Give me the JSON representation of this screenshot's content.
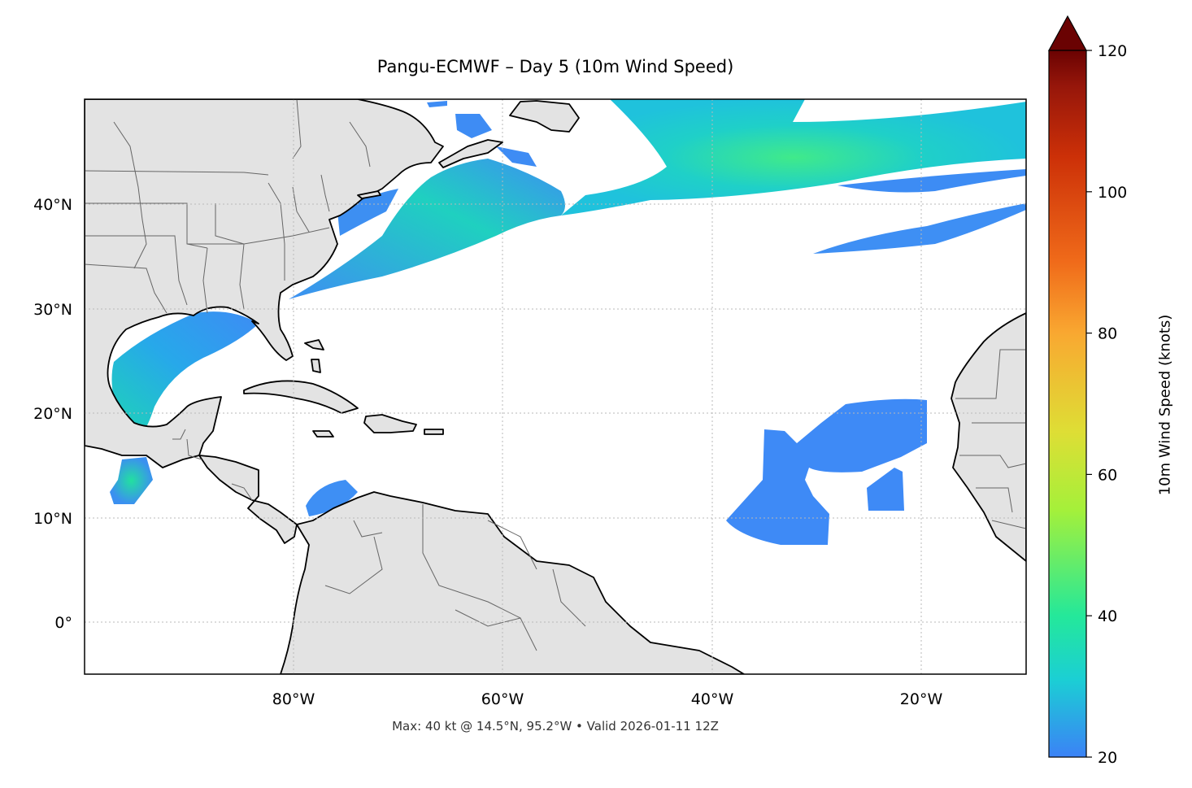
{
  "title": "Pangu-ECMWF – Day 5 (10m Wind Speed)",
  "footnote": "Max: 40 kt @ 14.5°N, 95.2°W • Valid 2026-01-11 12Z",
  "map": {
    "lon_range": [
      -100,
      -10
    ],
    "lat_range": [
      -5,
      50
    ],
    "lon_ticks": [
      "80°W",
      "60°W",
      "40°W",
      "20°W"
    ],
    "lat_ticks": [
      "40°N",
      "30°N",
      "20°N",
      "10°N",
      "0°"
    ],
    "gridlines": "dotted",
    "land_color": "#e3e3e3",
    "coastline_color": "#000000",
    "border_color": "#666666"
  },
  "colorbar": {
    "label": "10m Wind Speed (knots)",
    "ticks": [
      "20",
      "40",
      "60",
      "80",
      "100",
      "120"
    ],
    "range": [
      20,
      120
    ],
    "extend": "max",
    "colors": [
      "#3b82f6",
      "#1bcfd4",
      "#24e89a",
      "#a5f03a",
      "#dede35",
      "#f9a831",
      "#f06b1a",
      "#cc3008",
      "#96160a",
      "#6a0202"
    ]
  },
  "wind_regions": [
    {
      "name": "north-atlantic-jet",
      "peak_kt": 36
    },
    {
      "name": "us-east-coast-band",
      "peak_kt": 31
    },
    {
      "name": "gulf-of-mexico",
      "peak_kt": 30
    },
    {
      "name": "gulf-of-tehuantepec",
      "peak_kt": 40
    },
    {
      "name": "southwest-atlantic-streak",
      "peak_kt": 24
    },
    {
      "name": "great-lakes",
      "peak_kt": 26
    },
    {
      "name": "gulf-of-st-lawrence",
      "peak_kt": 25
    },
    {
      "name": "caribbean-colombia",
      "peak_kt": 23
    },
    {
      "name": "tropical-atlantic-trades",
      "peak_kt": 22
    },
    {
      "name": "cape-verde-trades",
      "peak_kt": 22
    }
  ]
}
